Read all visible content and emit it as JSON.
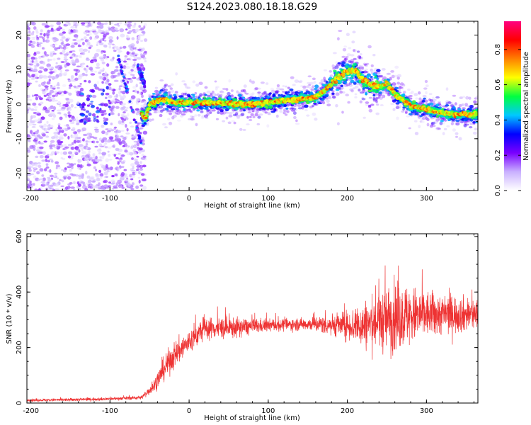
{
  "title": "S124.2023.080.18.18.G29",
  "chart_data": [
    {
      "type": "heatmap",
      "xlabel": "Height of straight line (km)",
      "ylabel": "Frequency (Hz)",
      "xlim": [
        -205,
        365
      ],
      "ylim": [
        -25,
        24
      ],
      "x_ticks": [
        -200,
        -100,
        0,
        100,
        200,
        300
      ],
      "y_ticks": [
        -20,
        -10,
        0,
        10,
        20
      ],
      "colorbar": {
        "label": "Normalized spectral amplitude",
        "range": [
          0,
          0.96
        ],
        "ticks": [
          0.0,
          0.2,
          0.4,
          0.6,
          0.8
        ],
        "palette": [
          "#ffffff",
          "#c9b0ff",
          "#7a00ff",
          "#0000ff",
          "#00c8ff",
          "#00ff40",
          "#ffff00",
          "#ff8000",
          "#ff0000",
          "#ff0080"
        ]
      },
      "ridge": {
        "x": [
          -60,
          -55,
          -50,
          -40,
          -30,
          -20,
          0,
          20,
          40,
          60,
          80,
          100,
          120,
          140,
          160,
          170,
          180,
          190,
          200,
          210,
          220,
          230,
          240,
          250,
          260,
          270,
          280,
          300,
          320,
          340,
          360
        ],
        "y": [
          -3,
          -4,
          0,
          1,
          1.5,
          0.5,
          0.5,
          0.5,
          0.3,
          0,
          0,
          0.5,
          1,
          1.5,
          2,
          3.5,
          6,
          8,
          9.5,
          10,
          7,
          5.5,
          5,
          6,
          3,
          1,
          -0.5,
          -1.5,
          -2.5,
          -3,
          -3
        ]
      },
      "scatter_region": {
        "x_range": [
          -205,
          -55
        ],
        "y_range": [
          -25,
          24
        ]
      },
      "interference_streaks": [
        {
          "x": [
            -90,
            -60
          ],
          "y": [
            14,
            -12
          ]
        },
        {
          "x": [
            -65,
            -55
          ],
          "y": [
            11,
            5
          ]
        }
      ]
    },
    {
      "type": "line",
      "xlabel": "Height of straight line (km)",
      "ylabel": "SNR (10 * v/v)",
      "xlim": [
        -205,
        365
      ],
      "ylim": [
        0,
        610
      ],
      "x_ticks": [
        -200,
        -100,
        0,
        100,
        200,
        300
      ],
      "y_ticks": [
        0,
        200,
        400,
        600
      ],
      "series_color": "#ee3333",
      "envelope": {
        "x": [
          -205,
          -150,
          -100,
          -60,
          -45,
          -30,
          -20,
          0,
          20,
          50,
          100,
          150,
          200,
          220,
          260,
          300,
          365
        ],
        "mean": [
          10,
          12,
          15,
          20,
          60,
          130,
          170,
          220,
          270,
          270,
          280,
          285,
          280,
          280,
          310,
          320,
          320
        ],
        "spread": [
          8,
          10,
          10,
          12,
          40,
          80,
          90,
          80,
          70,
          70,
          40,
          40,
          90,
          150,
          230,
          150,
          100
        ]
      }
    }
  ]
}
